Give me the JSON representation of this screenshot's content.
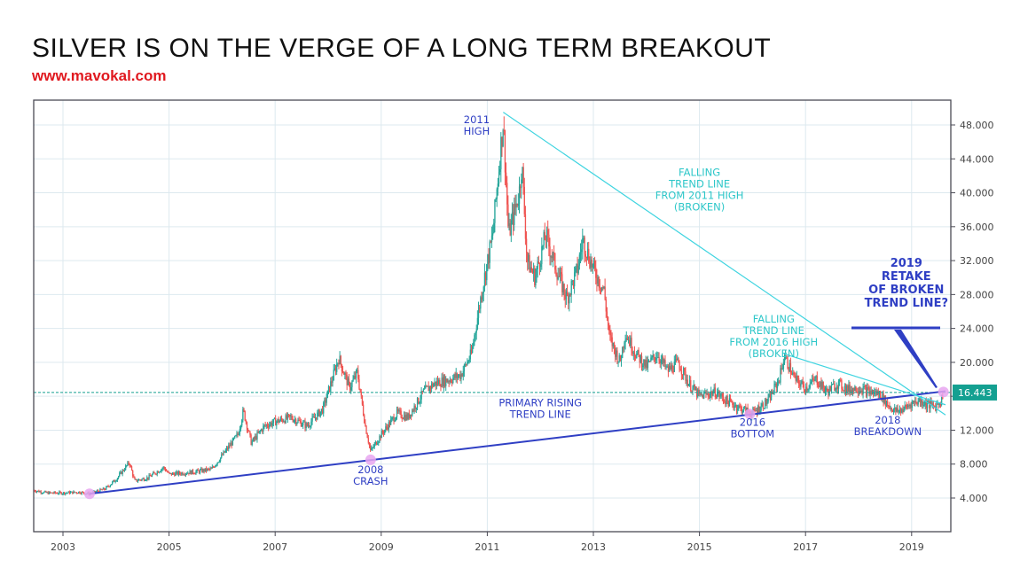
{
  "header": {
    "title": "SILVER IS ON THE VERGE OF A LONG TERM BREAKOUT",
    "subtitle": "www.mavokal.com"
  },
  "colors": {
    "up": "#26a69a",
    "down": "#ef5350",
    "rising_trend": "#2f3fc4",
    "falling_trend": "#3fd4e0",
    "price_tag": "#14a091",
    "grid": "#dde9ef",
    "marker": "#e8a6f0"
  },
  "chart_data": {
    "type": "candlestick",
    "title": "SILVER IS ON THE VERGE OF A LONG TERM BREAKOUT",
    "xlabel": "",
    "ylabel": "",
    "xlim": [
      2002.45,
      2019.75
    ],
    "ylim": [
      0.0,
      50.5
    ],
    "x_ticks": [
      "2003",
      "2005",
      "2007",
      "2009",
      "2011",
      "2013",
      "2015",
      "2017",
      "2019"
    ],
    "y_ticks": [
      "4.000",
      "8.000",
      "12.000",
      "16.000",
      "20.000",
      "24.000",
      "28.000",
      "32.000",
      "36.000",
      "40.000",
      "44.000",
      "48.000"
    ],
    "y_tick_values": [
      4,
      8,
      12,
      16,
      20,
      24,
      28,
      32,
      36,
      40,
      44,
      48
    ],
    "grid": true,
    "last_price": {
      "value": 16.443,
      "label": "16.443"
    },
    "price_path": [
      [
        2002.45,
        4.9
      ],
      [
        2002.7,
        4.6
      ],
      [
        2003.0,
        4.6
      ],
      [
        2003.3,
        4.7
      ],
      [
        2003.5,
        4.5
      ],
      [
        2003.8,
        5.1
      ],
      [
        2004.0,
        6.2
      ],
      [
        2004.25,
        8.2
      ],
      [
        2004.35,
        6.0
      ],
      [
        2004.6,
        6.4
      ],
      [
        2004.9,
        7.6
      ],
      [
        2005.0,
        6.8
      ],
      [
        2005.5,
        7.1
      ],
      [
        2005.8,
        7.4
      ],
      [
        2006.0,
        9.0
      ],
      [
        2006.3,
        11.5
      ],
      [
        2006.4,
        14.3
      ],
      [
        2006.55,
        10.5
      ],
      [
        2006.8,
        12.5
      ],
      [
        2007.0,
        13.0
      ],
      [
        2007.3,
        13.5
      ],
      [
        2007.6,
        12.5
      ],
      [
        2007.9,
        14.5
      ],
      [
        2008.0,
        16.5
      ],
      [
        2008.2,
        20.5
      ],
      [
        2008.4,
        17.0
      ],
      [
        2008.55,
        18.8
      ],
      [
        2008.7,
        12.5
      ],
      [
        2008.8,
        9.5
      ],
      [
        2008.9,
        10.5
      ],
      [
        2009.0,
        11.5
      ],
      [
        2009.3,
        14.0
      ],
      [
        2009.5,
        13.5
      ],
      [
        2009.8,
        16.5
      ],
      [
        2010.0,
        17.5
      ],
      [
        2010.3,
        18.0
      ],
      [
        2010.5,
        18.5
      ],
      [
        2010.7,
        21.0
      ],
      [
        2010.9,
        28.5
      ],
      [
        2011.1,
        35.0
      ],
      [
        2011.3,
        48.5
      ],
      [
        2011.4,
        35.0
      ],
      [
        2011.6,
        40.0
      ],
      [
        2011.65,
        43.5
      ],
      [
        2011.75,
        32.0
      ],
      [
        2011.9,
        30.0
      ],
      [
        2012.1,
        35.0
      ],
      [
        2012.3,
        31.0
      ],
      [
        2012.5,
        27.5
      ],
      [
        2012.7,
        31.0
      ],
      [
        2012.8,
        34.5
      ],
      [
        2013.0,
        31.0
      ],
      [
        2013.2,
        28.5
      ],
      [
        2013.3,
        23.0
      ],
      [
        2013.5,
        20.0
      ],
      [
        2013.6,
        23.5
      ],
      [
        2013.8,
        21.0
      ],
      [
        2014.0,
        19.5
      ],
      [
        2014.2,
        21.0
      ],
      [
        2014.4,
        19.0
      ],
      [
        2014.6,
        20.0
      ],
      [
        2014.8,
        17.5
      ],
      [
        2015.0,
        16.0
      ],
      [
        2015.3,
        16.5
      ],
      [
        2015.5,
        15.5
      ],
      [
        2015.8,
        14.5
      ],
      [
        2016.0,
        14.0
      ],
      [
        2016.3,
        15.5
      ],
      [
        2016.5,
        18.0
      ],
      [
        2016.6,
        20.7
      ],
      [
        2016.8,
        18.0
      ],
      [
        2017.0,
        17.0
      ],
      [
        2017.2,
        18.0
      ],
      [
        2017.4,
        16.5
      ],
      [
        2017.6,
        17.5
      ],
      [
        2017.8,
        16.8
      ],
      [
        2018.0,
        17.0
      ],
      [
        2018.2,
        16.5
      ],
      [
        2018.4,
        16.3
      ],
      [
        2018.55,
        15.0
      ],
      [
        2018.7,
        14.2
      ],
      [
        2018.85,
        14.5
      ],
      [
        2019.0,
        15.2
      ],
      [
        2019.15,
        15.5
      ],
      [
        2019.3,
        15.0
      ],
      [
        2019.45,
        14.8
      ],
      [
        2019.55,
        15.5
      ],
      [
        2019.6,
        16.44
      ]
    ],
    "trend_lines": [
      {
        "name": "primary-rising-trend-line",
        "from": [
          2003.5,
          4.5
        ],
        "to": [
          2019.75,
          16.6
        ],
        "color": "rising_trend"
      },
      {
        "name": "falling-trend-line-2011",
        "from": [
          2011.3,
          49.5
        ],
        "to": [
          2019.75,
          13.8
        ],
        "color": "falling_trend"
      },
      {
        "name": "falling-trend-line-2016",
        "from": [
          2016.6,
          21.0
        ],
        "to": [
          2019.75,
          15.0
        ],
        "color": "falling_trend"
      }
    ],
    "markers": [
      {
        "name": "2003-low-marker",
        "x": 2003.5,
        "y": 4.5
      },
      {
        "name": "2008-crash-marker",
        "x": 2008.8,
        "y": 8.5
      },
      {
        "name": "2016-bottom-marker",
        "x": 2015.95,
        "y": 13.9
      },
      {
        "name": "2019-retake-marker",
        "x": 2019.6,
        "y": 16.5
      }
    ],
    "annotations": [
      {
        "name": "2011-high-label",
        "lines": [
          "2011",
          "HIGH"
        ],
        "x": 2010.8,
        "y": 48.2,
        "style": "blue"
      },
      {
        "name": "falling-trend-2011-label",
        "lines": [
          "FALLING",
          "TREND LINE",
          "FROM 2011 HIGH",
          "(BROKEN)"
        ],
        "x": 2015.0,
        "y": 42.0,
        "style": "cyan"
      },
      {
        "name": "falling-trend-2016-label",
        "lines": [
          "FALLING",
          "TREND LINE",
          "FROM 2016 HIGH",
          "(BROKEN)"
        ],
        "x": 2016.4,
        "y": 24.7,
        "style": "cyan"
      },
      {
        "name": "primary-rising-trend-label",
        "lines": [
          "PRIMARY RISING",
          "TREND LINE"
        ],
        "x": 2012.0,
        "y": 14.8,
        "style": "blue"
      },
      {
        "name": "2008-crash-label",
        "lines": [
          "2008",
          "CRASH"
        ],
        "x": 2008.8,
        "y": 6.9,
        "style": "blue"
      },
      {
        "name": "2016-bottom-label",
        "lines": [
          "2016",
          "BOTTOM"
        ],
        "x": 2016.0,
        "y": 12.5,
        "style": "blue"
      },
      {
        "name": "2018-breakdown-label",
        "lines": [
          "2018",
          "BREAKDOWN"
        ],
        "x": 2018.55,
        "y": 12.8,
        "style": "blue"
      },
      {
        "name": "2019-retake-label",
        "lines": [
          "2019",
          "RETAKE",
          "OF BROKEN",
          "TREND LINE?"
        ],
        "x": 2018.9,
        "y": 31.3,
        "style": "big"
      }
    ]
  }
}
